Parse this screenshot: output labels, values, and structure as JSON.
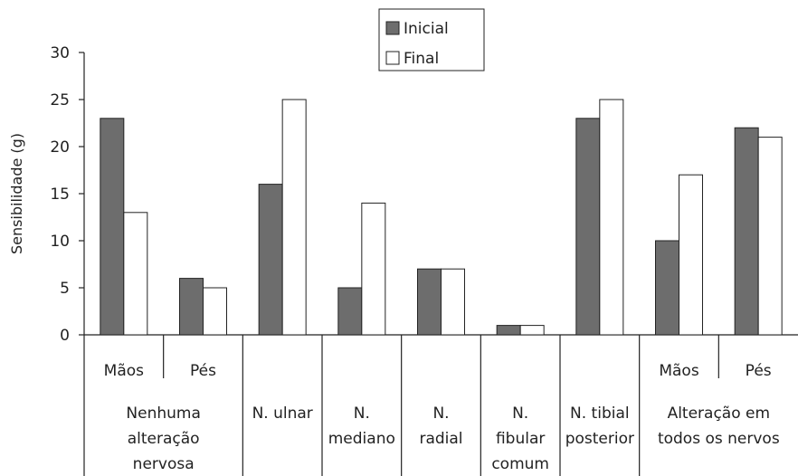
{
  "chart_data": {
    "type": "bar",
    "ylabel": "Sensibilidade (g)",
    "ylim": [
      0,
      30
    ],
    "yticks": [
      0,
      5,
      10,
      15,
      20,
      25,
      30
    ],
    "grid": false,
    "legend_position": "top-center",
    "categories": [
      {
        "sub": "Mãos",
        "group": "Nenhuma alteração nervosa"
      },
      {
        "sub": "Pés",
        "group": "Nenhuma alteração nervosa"
      },
      {
        "sub": "",
        "group": "N. ulnar"
      },
      {
        "sub": "",
        "group": "N. mediano"
      },
      {
        "sub": "",
        "group": "N. radial"
      },
      {
        "sub": "",
        "group": "N. fibular comum"
      },
      {
        "sub": "",
        "group": "N. tibial posterior"
      },
      {
        "sub": "Mãos",
        "group": "Alteração em todos os nervos"
      },
      {
        "sub": "Pés",
        "group": "Alteração em todos os nervos"
      }
    ],
    "groups": [
      {
        "label_lines": [
          "Nenhuma",
          "alteração",
          "nervosa"
        ],
        "span": 2
      },
      {
        "label_lines": [
          "N. ulnar"
        ],
        "span": 1
      },
      {
        "label_lines": [
          "N.",
          "mediano"
        ],
        "span": 1
      },
      {
        "label_lines": [
          "N.",
          "radial"
        ],
        "span": 1
      },
      {
        "label_lines": [
          "N.",
          "fibular",
          "comum"
        ],
        "span": 1
      },
      {
        "label_lines": [
          "N. tibial",
          "posterior"
        ],
        "span": 1
      },
      {
        "label_lines": [
          "Alteração em",
          "todos os nervos"
        ],
        "span": 2
      }
    ],
    "series": [
      {
        "name": "Inicial",
        "color": "#6d6d6d",
        "values": [
          23,
          6,
          16,
          5,
          7,
          1,
          23,
          10,
          22
        ]
      },
      {
        "name": "Final",
        "color": "#ffffff",
        "values": [
          13,
          5,
          25,
          14,
          7,
          1,
          25,
          17,
          21
        ]
      }
    ]
  }
}
